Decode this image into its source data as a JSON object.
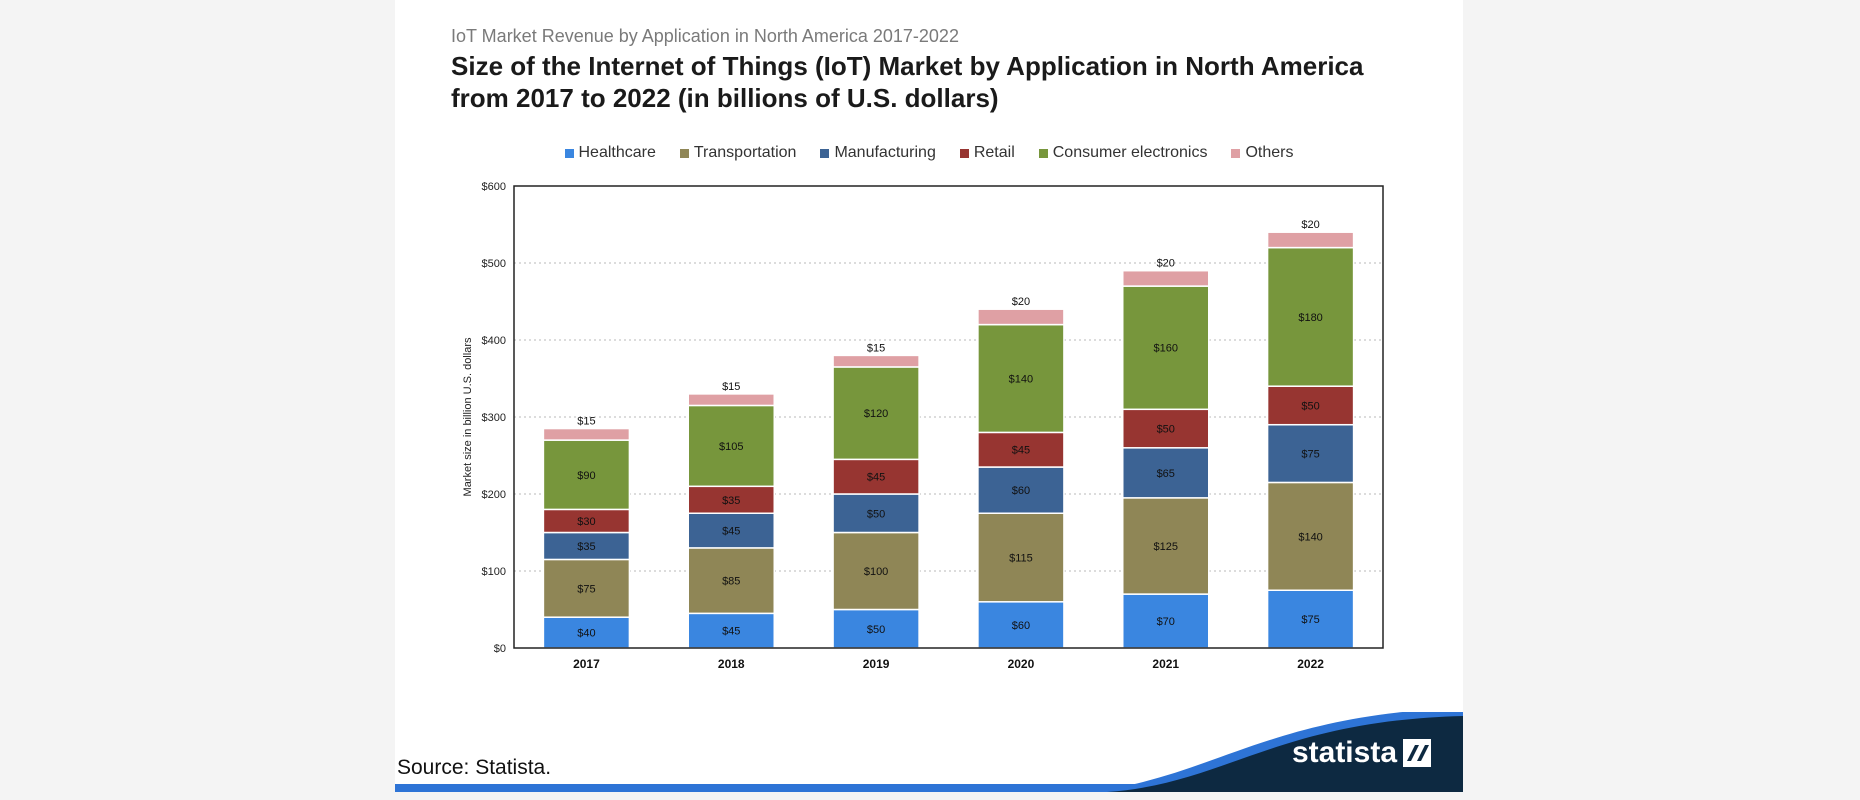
{
  "header": {
    "subtitle": "IoT Market Revenue by Application in North America 2017-2022",
    "title": "Size of the Internet of Things (IoT) Market by Application in North America from 2017 to 2022 (in billions of U.S. dollars)"
  },
  "footer": {
    "source": "Source: Statista.",
    "brand": "statista"
  },
  "colors": {
    "Healthcare": "#3a86e0",
    "Transportation": "#8f8656",
    "Manufacturing": "#3c6394",
    "Retail": "#973531",
    "Consumer electronics": "#77963c",
    "Others": "#dfa0a4",
    "brand_dark": "#0d2941",
    "brand_blue": "#2e74d6"
  },
  "chart_data": {
    "type": "bar",
    "stacked": true,
    "categories": [
      "2017",
      "2018",
      "2019",
      "2020",
      "2021",
      "2022"
    ],
    "series": [
      {
        "name": "Healthcare",
        "values": [
          40,
          45,
          50,
          60,
          70,
          75
        ],
        "labels": [
          "$40",
          "$45",
          "$50",
          "$60",
          "$70",
          "$75"
        ]
      },
      {
        "name": "Transportation",
        "values": [
          75,
          85,
          100,
          115,
          125,
          140
        ],
        "labels": [
          "$75",
          "$85",
          "$100",
          "$115",
          "$125",
          "$140"
        ]
      },
      {
        "name": "Manufacturing",
        "values": [
          35,
          45,
          50,
          60,
          65,
          75
        ],
        "labels": [
          "$35",
          "$45",
          "$50",
          "$60",
          "$65",
          "$75"
        ]
      },
      {
        "name": "Retail",
        "values": [
          30,
          35,
          45,
          45,
          50,
          50
        ],
        "labels": [
          "$30",
          "$35",
          "$45",
          "$45",
          "$50",
          "$50"
        ]
      },
      {
        "name": "Consumer electronics",
        "values": [
          90,
          105,
          120,
          140,
          160,
          180
        ],
        "labels": [
          "$90",
          "$105",
          "$120",
          "$140",
          "$160",
          "$180"
        ]
      },
      {
        "name": "Others",
        "values": [
          15,
          15,
          15,
          20,
          20,
          20
        ],
        "labels": [
          "$15",
          "$15",
          "$15",
          "$20",
          "$20",
          "$20"
        ]
      }
    ],
    "ylabel": "Market size in billion U.S. dollars",
    "ylim": [
      0,
      600
    ],
    "yticks": [
      0,
      100,
      200,
      300,
      400,
      500,
      600
    ],
    "ytick_labels": [
      "$0",
      "$100",
      "$200",
      "$300",
      "$400",
      "$500",
      "$600"
    ],
    "grid": true,
    "legend_position": "top"
  }
}
